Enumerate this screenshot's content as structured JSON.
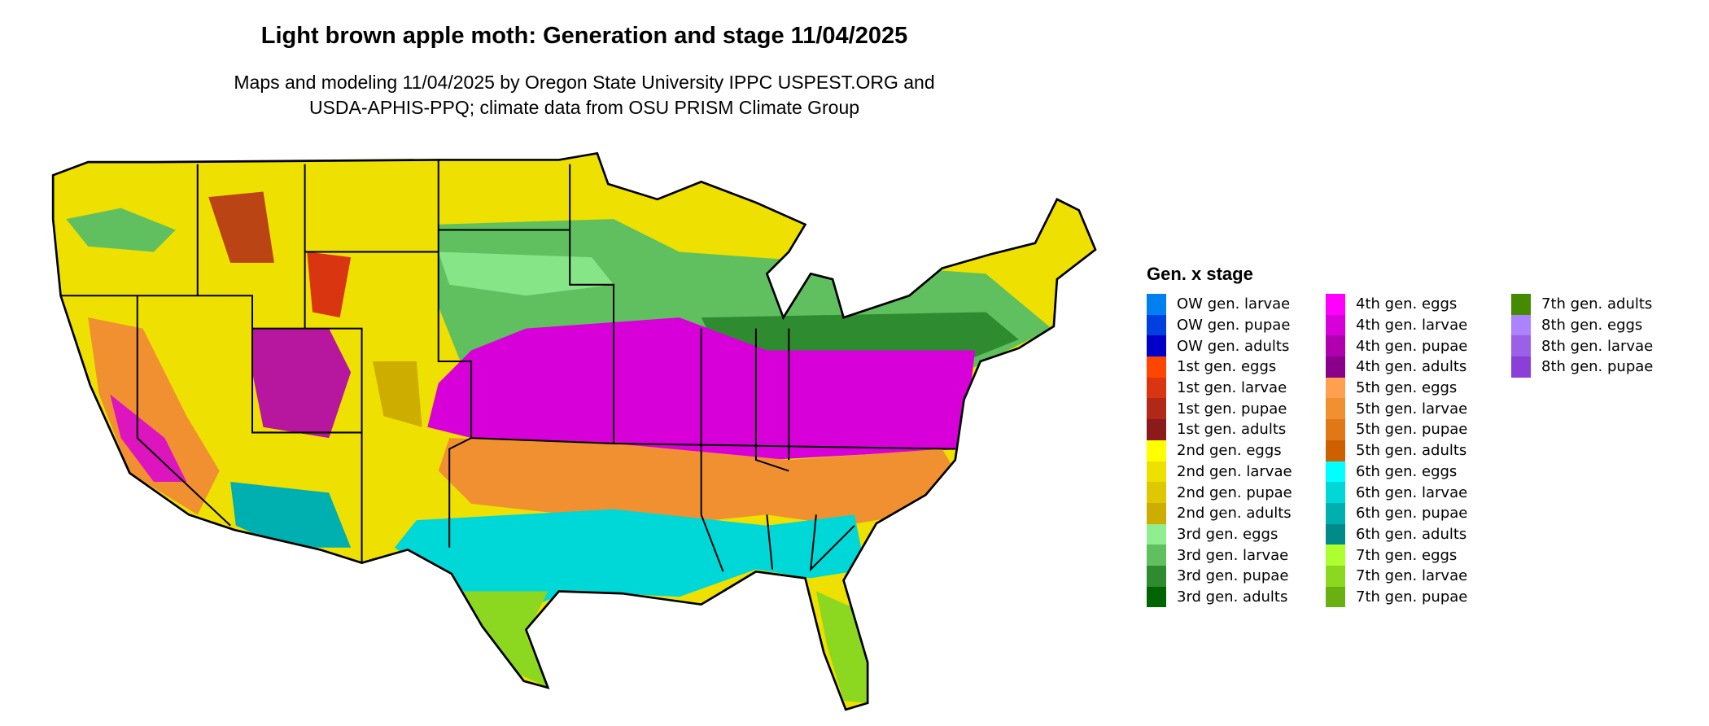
{
  "title": "Light brown apple moth: Generation and stage 11/04/2025",
  "subtitle_line1": "Maps and modeling 11/04/2025 by Oregon State University IPPC USPEST.ORG and",
  "subtitle_line2": "USDA-APHIS-PPQ; climate data from OSU PRISM Climate Group",
  "legend": {
    "title": "Gen. x stage",
    "columns": [
      [
        {
          "label": "OW gen. larvae",
          "color": "#0080f0"
        },
        {
          "label": "OW gen. pupae",
          "color": "#0040e0"
        },
        {
          "label": "OW gen. adults",
          "color": "#0000c8"
        },
        {
          "label": "1st gen. eggs",
          "color": "#ff4500"
        },
        {
          "label": "1st gen. larvae",
          "color": "#d83510"
        },
        {
          "label": "1st gen. pupae",
          "color": "#b02818"
        },
        {
          "label": "1st gen. adults",
          "color": "#8b1a1a"
        },
        {
          "label": "2nd gen. eggs",
          "color": "#ffff00"
        },
        {
          "label": "2nd gen. larvae",
          "color": "#eee000"
        },
        {
          "label": "2nd gen. pupae",
          "color": "#e0c800"
        },
        {
          "label": "2nd gen. adults",
          "color": "#cdad00"
        },
        {
          "label": "3rd gen. eggs",
          "color": "#90ee90"
        },
        {
          "label": "3rd gen. larvae",
          "color": "#60c060"
        },
        {
          "label": "3rd gen. pupae",
          "color": "#2e8b30"
        },
        {
          "label": "3rd gen. adults",
          "color": "#006400"
        }
      ],
      [
        {
          "label": "4th gen. eggs",
          "color": "#ff00ff"
        },
        {
          "label": "4th gen. larvae",
          "color": "#d800d8"
        },
        {
          "label": "4th gen. pupae",
          "color": "#b000b0"
        },
        {
          "label": "4th gen. adults",
          "color": "#8b008b"
        },
        {
          "label": "5th gen. eggs",
          "color": "#ffa050"
        },
        {
          "label": "5th gen. larvae",
          "color": "#f09030"
        },
        {
          "label": "5th gen. pupae",
          "color": "#e07818"
        },
        {
          "label": "5th gen. adults",
          "color": "#cd6000"
        },
        {
          "label": "6th gen. eggs",
          "color": "#00ffff"
        },
        {
          "label": "6th gen. larvae",
          "color": "#00d8d8"
        },
        {
          "label": "6th gen. pupae",
          "color": "#00b0b0"
        },
        {
          "label": "6th gen. adults",
          "color": "#008b8b"
        },
        {
          "label": "7th gen. eggs",
          "color": "#adff2f"
        },
        {
          "label": "7th gen. larvae",
          "color": "#8cd820"
        },
        {
          "label": "7th gen. pupae",
          "color": "#6ab010"
        }
      ],
      [
        {
          "label": "7th gen. adults",
          "color": "#458b00"
        },
        {
          "label": "8th gen. eggs",
          "color": "#ab82ff"
        },
        {
          "label": "8th gen. larvae",
          "color": "#9a60e8"
        },
        {
          "label": "8th gen. pupae",
          "color": "#8a40d8"
        }
      ]
    ]
  }
}
